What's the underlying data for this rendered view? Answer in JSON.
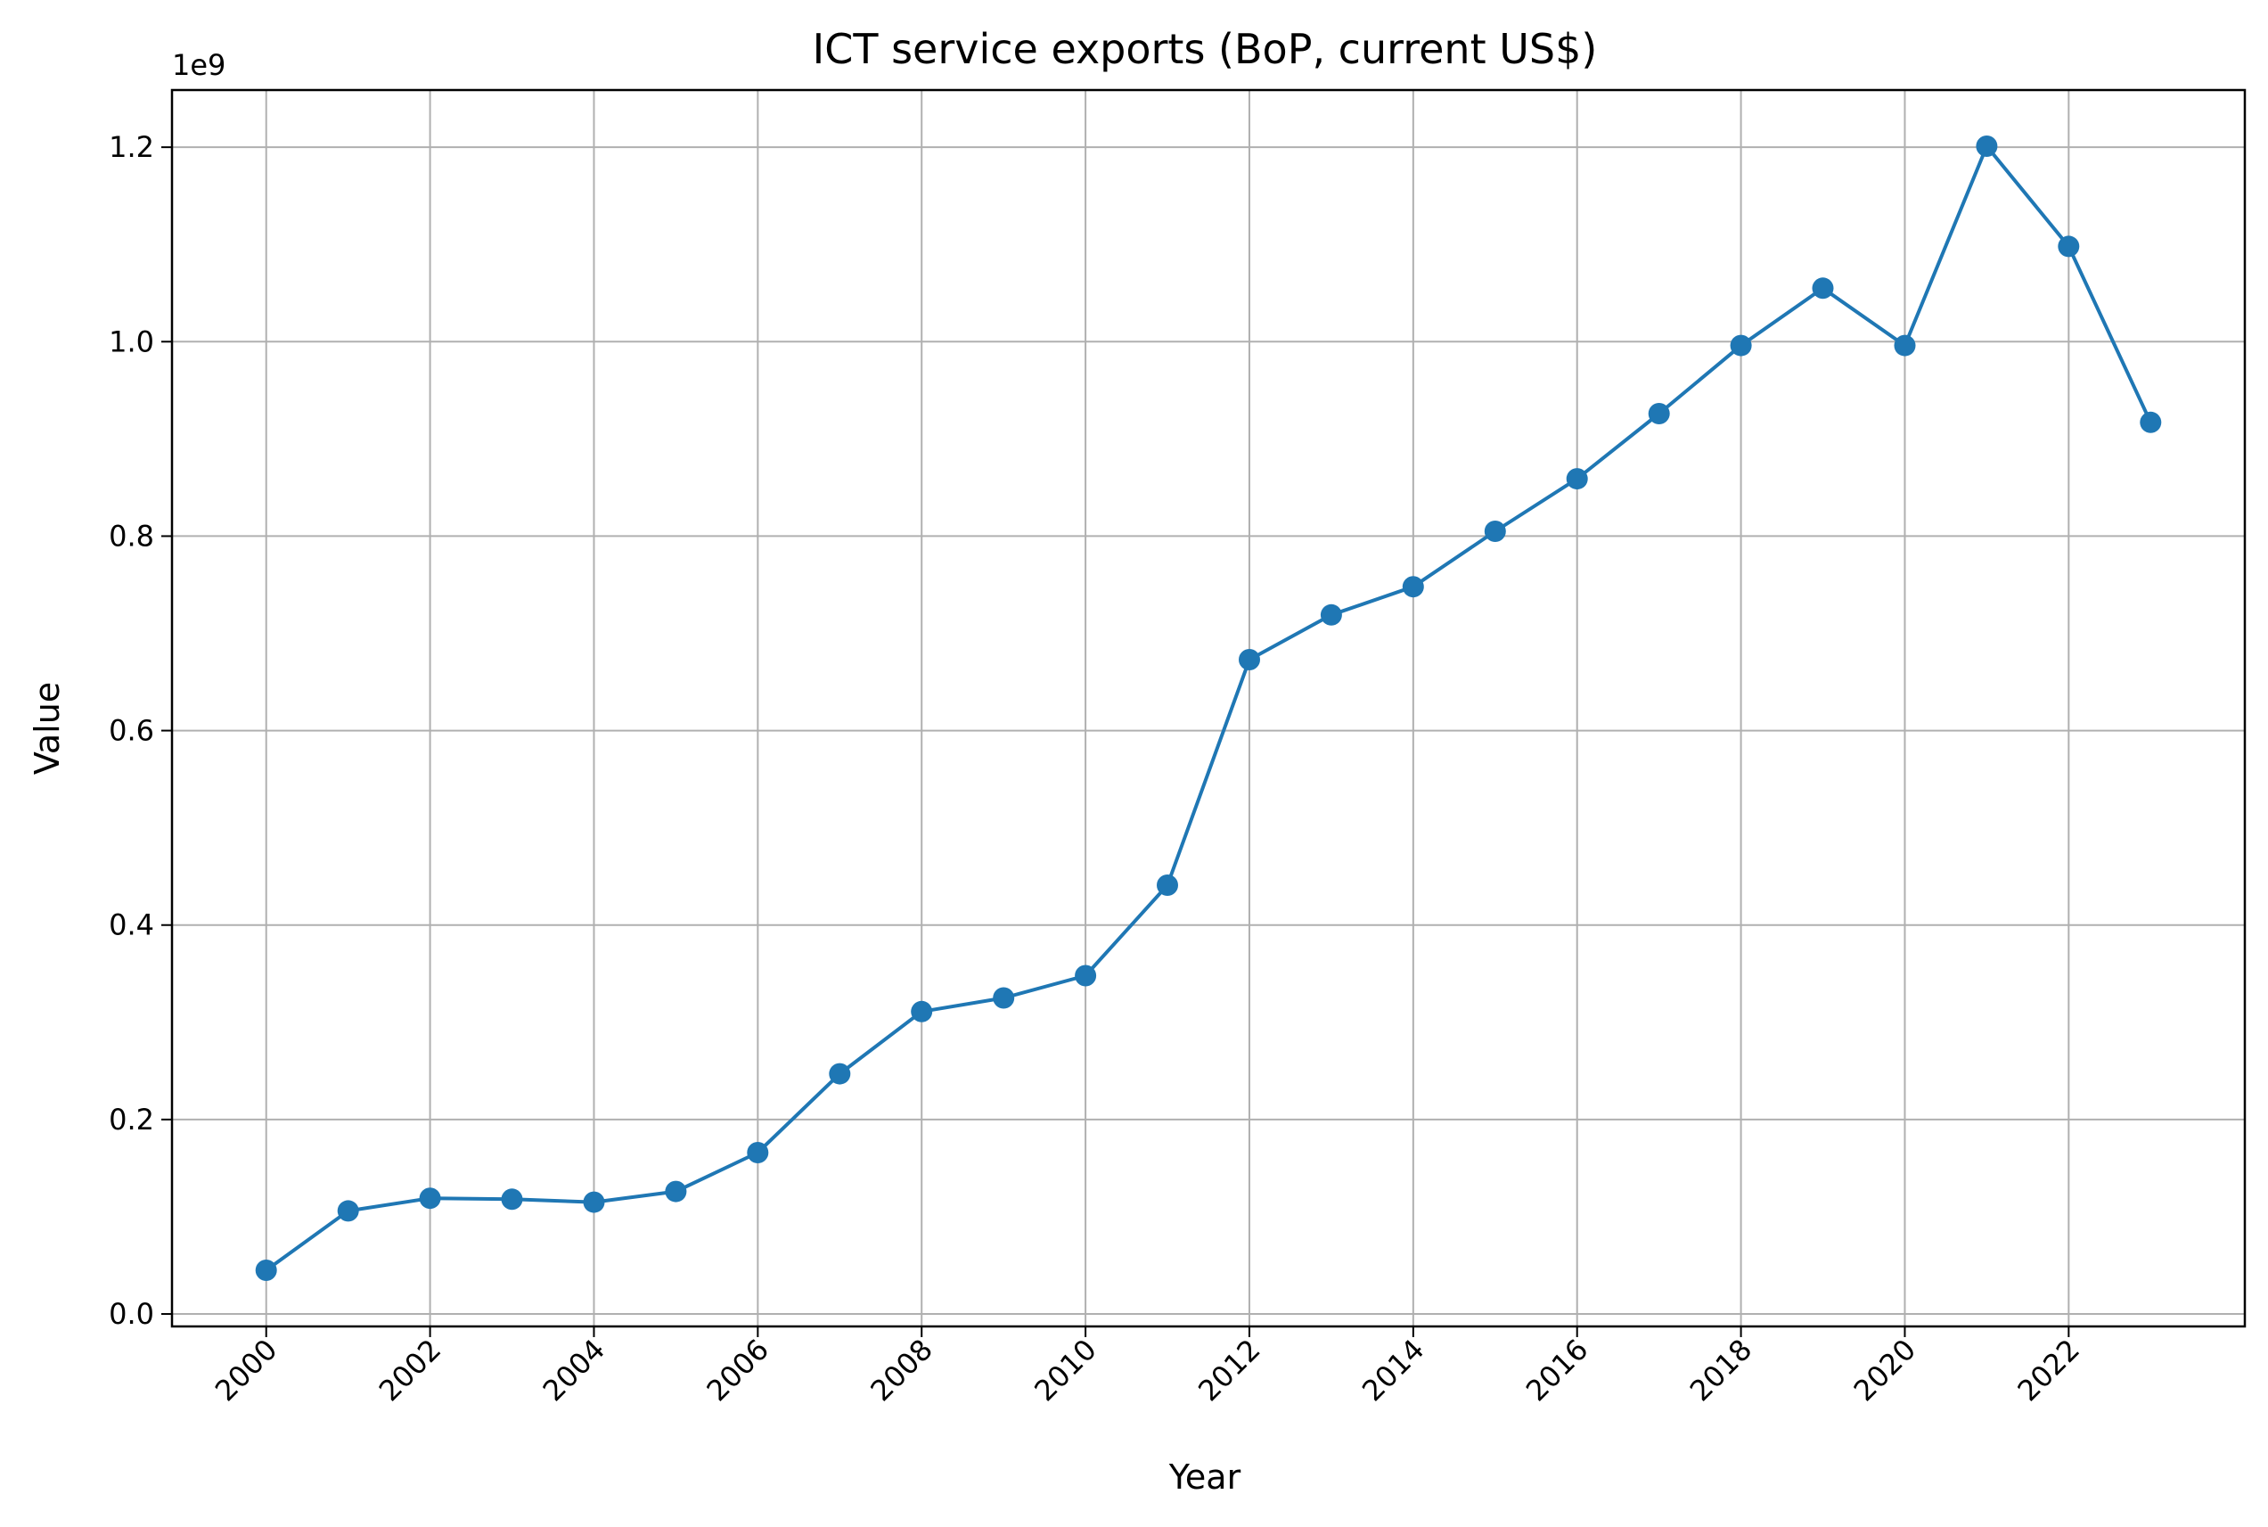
{
  "chart_data": {
    "type": "line",
    "title": "ICT service exports (BoP, current US$)",
    "xlabel": "Year",
    "ylabel": "Value",
    "y_offset_label": "1e9",
    "x": [
      2000,
      2001,
      2002,
      2003,
      2004,
      2005,
      2006,
      2007,
      2008,
      2009,
      2010,
      2011,
      2012,
      2013,
      2014,
      2015,
      2016,
      2017,
      2018,
      2019,
      2020,
      2021,
      2022,
      2023
    ],
    "series": [
      {
        "values": [
          45000000,
          106000000,
          119000000,
          118000000,
          115000000,
          126000000,
          166000000,
          247000000,
          311000000,
          325000000,
          348000000,
          441000000,
          673000000,
          719000000,
          748000000,
          805000000,
          859000000,
          926000000,
          996000000,
          1055000000,
          996000000,
          1201000000,
          1098000000,
          917000000
        ],
        "color": "#1f77b4",
        "marker": "circle"
      }
    ],
    "x_ticks": [
      "2000",
      "2002",
      "2004",
      "2006",
      "2008",
      "2010",
      "2012",
      "2014",
      "2016",
      "2018",
      "2020",
      "2022"
    ],
    "y_ticks": [
      "0.0",
      "0.2",
      "0.4",
      "0.6",
      "0.8",
      "1.0",
      "1.2"
    ],
    "y_tick_values": [
      0,
      200000000,
      400000000,
      600000000,
      800000000,
      1000000000,
      1200000000
    ],
    "xlim": [
      1998.85,
      2024.15
    ],
    "ylim": [
      -12800000,
      1258800000
    ],
    "grid": true,
    "legend": "none",
    "grid_color": "#b0b0b0"
  }
}
